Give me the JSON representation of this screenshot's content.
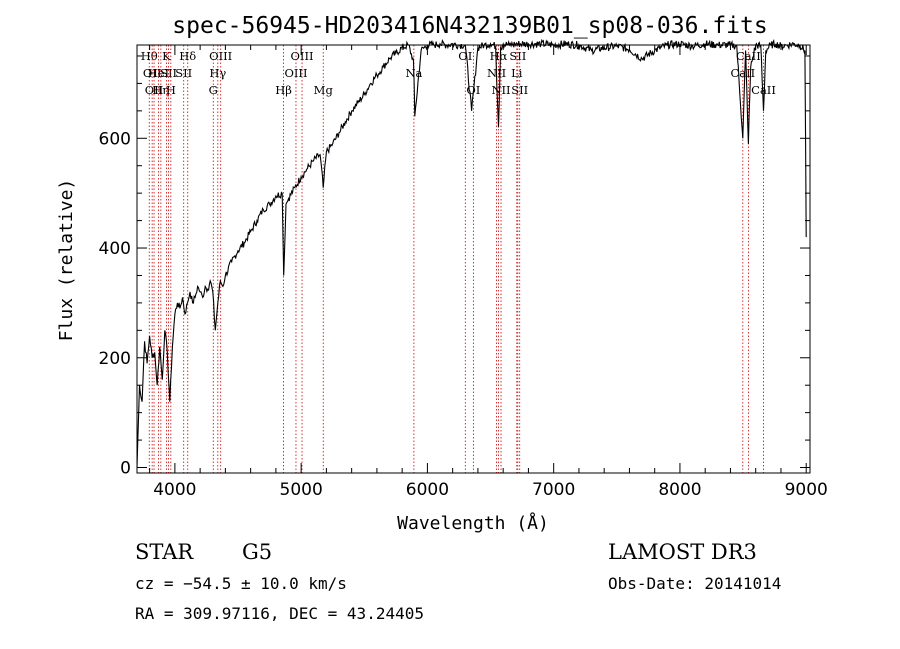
{
  "chart_data": {
    "type": "line",
    "title": "spec-56945-HD203416N432139B01_sp08-036.fits",
    "xlabel": "Wavelength (Å)",
    "ylabel": "Flux (relative)",
    "xlim": [
      3700,
      9030
    ],
    "ylim": [
      -10,
      770
    ],
    "xticks": [
      4000,
      5000,
      6000,
      7000,
      8000,
      9000
    ],
    "yticks": [
      0,
      200,
      400,
      600
    ],
    "series": [
      {
        "name": "flux",
        "x": [
          3700,
          3720,
          3740,
          3760,
          3780,
          3800,
          3820,
          3840,
          3860,
          3880,
          3900,
          3920,
          3940,
          3960,
          3980,
          4000,
          4020,
          4040,
          4060,
          4080,
          4100,
          4120,
          4140,
          4160,
          4180,
          4200,
          4220,
          4240,
          4260,
          4280,
          4300,
          4320,
          4340,
          4360,
          4380,
          4400,
          4450,
          4500,
          4550,
          4600,
          4650,
          4700,
          4750,
          4800,
          4850,
          4862,
          4880,
          4900,
          4950,
          5000,
          5050,
          5100,
          5150,
          5175,
          5200,
          5250,
          5300,
          5350,
          5400,
          5450,
          5500,
          5550,
          5600,
          5650,
          5700,
          5750,
          5800,
          5850,
          5890,
          5900,
          5950,
          6000,
          6050,
          6100,
          6150,
          6200,
          6250,
          6300,
          6350,
          6400,
          6450,
          6500,
          6540,
          6563,
          6580,
          6600,
          6650,
          6700,
          6800,
          6900,
          7000,
          7100,
          7200,
          7300,
          7400,
          7500,
          7600,
          7700,
          7800,
          7900,
          8000,
          8100,
          8200,
          8300,
          8400,
          8450,
          8498,
          8520,
          8542,
          8560,
          8600,
          8640,
          8662,
          8680,
          8720,
          8760,
          8800,
          8850,
          8900,
          8950,
          8990,
          9000
        ],
        "values": [
          0,
          150,
          120,
          230,
          190,
          240,
          200,
          210,
          150,
          220,
          160,
          250,
          210,
          120,
          220,
          280,
          300,
          290,
          310,
          280,
          300,
          320,
          300,
          310,
          330,
          320,
          310,
          330,
          325,
          340,
          320,
          250,
          300,
          340,
          330,
          350,
          375,
          395,
          410,
          430,
          450,
          470,
          480,
          495,
          500,
          350,
          480,
          490,
          510,
          530,
          545,
          560,
          570,
          510,
          575,
          590,
          610,
          630,
          650,
          665,
          680,
          700,
          715,
          730,
          745,
          755,
          765,
          770,
          740,
          640,
          760,
          770,
          770,
          772,
          770,
          772,
          770,
          770,
          650,
          765,
          770,
          772,
          768,
          620,
          765,
          772,
          770,
          772,
          772,
          772,
          770,
          772,
          770,
          760,
          765,
          768,
          762,
          745,
          760,
          770,
          772,
          768,
          772,
          770,
          770,
          768,
          600,
          760,
          590,
          730,
          770,
          768,
          650,
          760,
          770,
          772,
          768,
          770,
          772,
          770,
          760,
          420
        ]
      }
    ],
    "lines": [
      {
        "wave": 3797,
        "label": "Hθ",
        "row": 0
      },
      {
        "wave": 3820,
        "label": "OII",
        "row": 1
      },
      {
        "wave": 3835,
        "label": "OII",
        "row": 2
      },
      {
        "wave": 3870,
        "label": "HeI",
        "row": 1
      },
      {
        "wave": 3889,
        "label": "Hη",
        "row": 2
      },
      {
        "wave": 3933,
        "label": "K",
        "row": 0
      },
      {
        "wave": 3950,
        "label": "SII",
        "row": 1
      },
      {
        "wave": 3968,
        "label": "H",
        "row": 2
      },
      {
        "wave": 4070,
        "label": "SII",
        "row": 1
      },
      {
        "wave": 4102,
        "label": "Hδ",
        "row": 0
      },
      {
        "wave": 4340,
        "label": "Hγ",
        "row": 1
      },
      {
        "wave": 4304,
        "label": "G",
        "row": 2
      },
      {
        "wave": 4363,
        "label": "OIII",
        "row": 0
      },
      {
        "wave": 4861,
        "label": "Hβ",
        "row": 2
      },
      {
        "wave": 4959,
        "label": "OIII",
        "row": 1
      },
      {
        "wave": 5007,
        "label": "OIII",
        "row": 0
      },
      {
        "wave": 5175,
        "label": "Mg",
        "row": 2
      },
      {
        "wave": 5893,
        "label": "Na",
        "row": 1
      },
      {
        "wave": 6300,
        "label": "OI",
        "row": 0
      },
      {
        "wave": 6364,
        "label": "OI",
        "row": 2
      },
      {
        "wave": 6548,
        "label": "NII",
        "row": 1
      },
      {
        "wave": 6563,
        "label": "Hα",
        "row": 0
      },
      {
        "wave": 6583,
        "label": "NII",
        "row": 2
      },
      {
        "wave": 6708,
        "label": "Li",
        "row": 1
      },
      {
        "wave": 6716,
        "label": "SII",
        "row": 0
      },
      {
        "wave": 6731,
        "label": "SII",
        "row": 2
      },
      {
        "wave": 8498,
        "label": "CaII",
        "row": 1
      },
      {
        "wave": 8542,
        "label": "CaII",
        "row": 0
      },
      {
        "wave": 8662,
        "label": "CaII",
        "row": 2
      }
    ]
  },
  "info": {
    "object_class": "STAR",
    "subclass": "G5",
    "survey": "LAMOST DR3",
    "cz": "cz = −54.5 ± 10.0 km/s",
    "obs_date": "Obs-Date: 20141014",
    "coords": "RA = 309.97116, DEC =  43.24405"
  }
}
